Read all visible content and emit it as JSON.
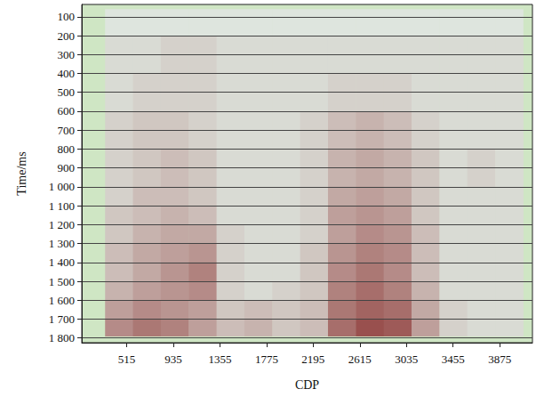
{
  "chart_data": {
    "type": "heatmap",
    "xlabel": "CDP",
    "ylabel": "Time/ms",
    "xlim": [
      110,
      4170
    ],
    "xticks": [
      515,
      935,
      1355,
      1775,
      2195,
      2615,
      3035,
      3455,
      3875
    ],
    "ylim": [
      35,
      1825
    ],
    "yticks": [
      100,
      200,
      300,
      400,
      500,
      600,
      700,
      800,
      900,
      {
        "value": 1000,
        "label": "1 000"
      },
      {
        "value": 1100,
        "label": "1 100"
      },
      {
        "value": 1200,
        "label": "1 200"
      },
      {
        "value": 1300,
        "label": "1 300"
      },
      {
        "value": 1400,
        "label": "1 400"
      },
      {
        "value": 1500,
        "label": "1 500"
      },
      {
        "value": 1600,
        "label": "1 600"
      },
      {
        "value": 1700,
        "label": "1 700"
      },
      {
        "value": 1800,
        "label": "1 800"
      }
    ],
    "grid": true,
    "cells": {
      "x_edges": [
        320,
        571,
        822,
        1073,
        1324,
        1575,
        1826,
        2077,
        2328,
        2579,
        2830,
        3081,
        3332,
        3583,
        3834,
        4085
      ],
      "y_edges": [
        60,
        200,
        400,
        600,
        800,
        1000,
        1100,
        1200,
        1300,
        1400,
        1500,
        1600,
        1700,
        1790
      ],
      "range": [
        0,
        1
      ],
      "values": [
        [
          0,
          0,
          0,
          0,
          0,
          0,
          0,
          0,
          0,
          0,
          0,
          0,
          0,
          0,
          0
        ],
        [
          0.05,
          0.05,
          0.1,
          0.1,
          0.05,
          0.05,
          0.05,
          0.05,
          0.05,
          0.05,
          0.05,
          0.05,
          0.05,
          0.05,
          0.05
        ],
        [
          0.05,
          0.1,
          0.1,
          0.1,
          0.05,
          0.05,
          0.05,
          0.05,
          0.1,
          0.1,
          0.1,
          0.05,
          0.05,
          0.05,
          0.05
        ],
        [
          0.1,
          0.15,
          0.15,
          0.1,
          0.05,
          0.05,
          0.05,
          0.1,
          0.2,
          0.25,
          0.2,
          0.1,
          0.05,
          0.05,
          0.05
        ],
        [
          0.1,
          0.15,
          0.2,
          0.15,
          0.05,
          0.05,
          0.05,
          0.1,
          0.25,
          0.3,
          0.25,
          0.15,
          0.05,
          0.1,
          0.05
        ],
        [
          0.1,
          0.2,
          0.2,
          0.15,
          0.05,
          0.05,
          0.05,
          0.1,
          0.3,
          0.35,
          0.3,
          0.15,
          0.05,
          0.05,
          0.05
        ],
        [
          0.15,
          0.2,
          0.25,
          0.2,
          0.05,
          0.05,
          0.05,
          0.1,
          0.35,
          0.4,
          0.35,
          0.15,
          0.05,
          0.05,
          0.05
        ],
        [
          0.15,
          0.25,
          0.3,
          0.3,
          0.1,
          0.05,
          0.05,
          0.1,
          0.35,
          0.45,
          0.4,
          0.2,
          0.05,
          0.05,
          0.05
        ],
        [
          0.2,
          0.3,
          0.35,
          0.4,
          0.1,
          0.05,
          0.05,
          0.15,
          0.4,
          0.5,
          0.45,
          0.2,
          0.05,
          0.05,
          0.05
        ],
        [
          0.2,
          0.3,
          0.4,
          0.5,
          0.1,
          0.05,
          0.05,
          0.15,
          0.45,
          0.55,
          0.45,
          0.2,
          0.05,
          0.05,
          0.05
        ],
        [
          0.25,
          0.35,
          0.4,
          0.45,
          0.1,
          0.05,
          0.1,
          0.15,
          0.5,
          0.6,
          0.5,
          0.25,
          0.05,
          0.05,
          0.05
        ],
        [
          0.35,
          0.45,
          0.4,
          0.35,
          0.15,
          0.2,
          0.15,
          0.2,
          0.55,
          0.65,
          0.6,
          0.3,
          0.1,
          0.05,
          0.05
        ],
        [
          0.45,
          0.55,
          0.5,
          0.35,
          0.2,
          0.25,
          0.15,
          0.2,
          0.6,
          0.75,
          0.7,
          0.35,
          0.1,
          0.05,
          0.05
        ]
      ]
    }
  }
}
